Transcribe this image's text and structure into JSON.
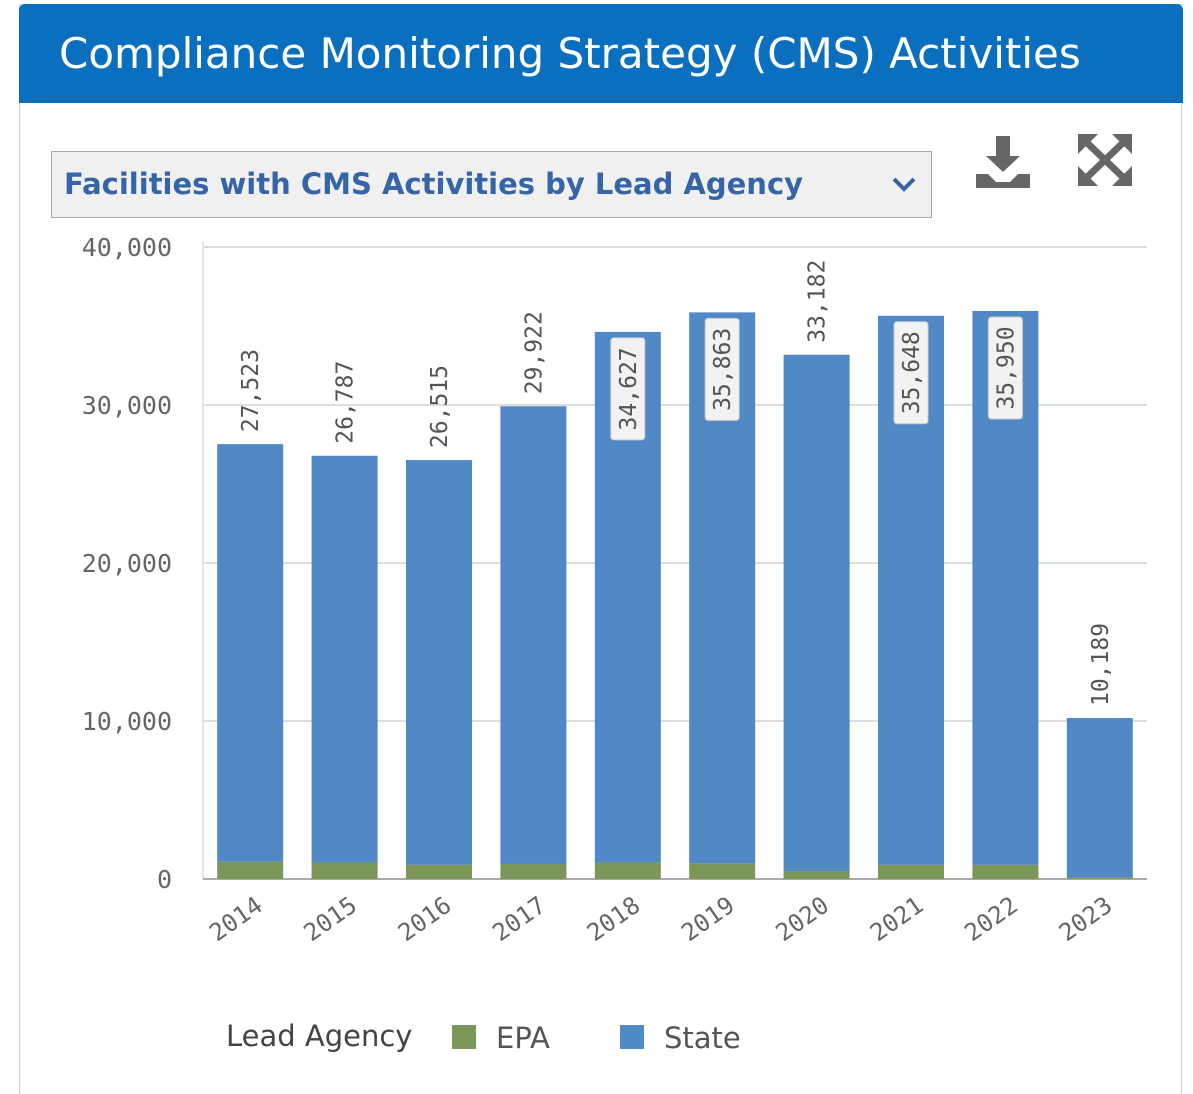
{
  "header": {
    "title": "Compliance Monitoring Strategy (CMS) Activities"
  },
  "dropdown": {
    "label": "Facilities with CMS Activities by Lead Agency"
  },
  "chart_data": {
    "type": "stacked_bar",
    "categories": [
      "2014",
      "2015",
      "2016",
      "2017",
      "2018",
      "2019",
      "2020",
      "2021",
      "2022",
      "2023"
    ],
    "series": [
      {
        "name": "EPA",
        "color": "#7a9659",
        "values": [
          1100,
          1050,
          900,
          950,
          1050,
          1000,
          500,
          900,
          900,
          100
        ]
      },
      {
        "name": "State",
        "color": "#5089c6",
        "values": [
          26423,
          25737,
          25615,
          28972,
          33577,
          34863,
          32682,
          34748,
          35050,
          10089
        ]
      }
    ],
    "totals": [
      27523,
      26787,
      26515,
      29922,
      34627,
      35863,
      33182,
      35648,
      35950,
      10189
    ],
    "value_labels": [
      "27,523",
      "26,787",
      "26,515",
      "29,922",
      "34,627",
      "35,863",
      "33,182",
      "35,648",
      "35,950",
      "10,189"
    ],
    "legend_title": "Lead Agency",
    "ylim": [
      0,
      40000
    ],
    "yticks": [
      {
        "value": 0,
        "label": "0"
      },
      {
        "value": 10000,
        "label": "10,000"
      },
      {
        "value": 20000,
        "label": "20,000"
      },
      {
        "value": 30000,
        "label": "30,000"
      },
      {
        "value": 40000,
        "label": "40,000"
      }
    ],
    "grid": true
  }
}
